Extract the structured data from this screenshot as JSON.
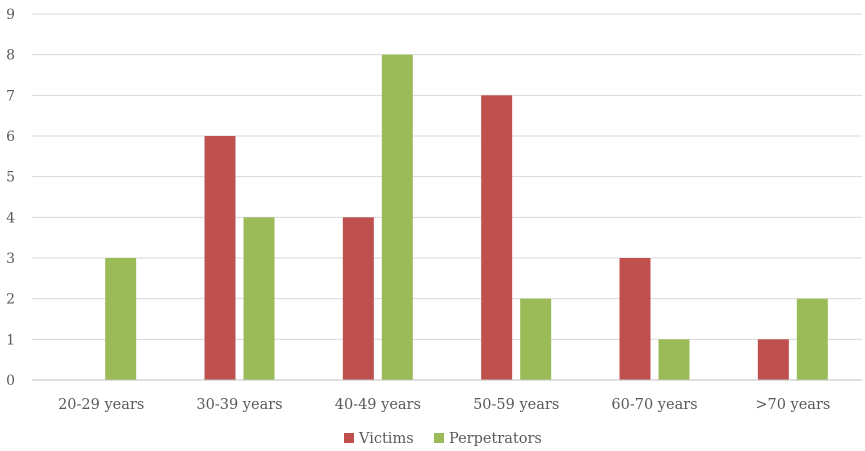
{
  "chart_data": {
    "type": "bar",
    "title": "",
    "xlabel": "",
    "ylabel": "",
    "categories": [
      "20-29 years",
      "30-39 years",
      "40-49 years",
      "50-59 years",
      "60-70 years",
      ">70 years"
    ],
    "series": [
      {
        "name": "Victims",
        "color": "#c0504d",
        "values": [
          0,
          6,
          4,
          7,
          3,
          1
        ]
      },
      {
        "name": "Perpetrators",
        "color": "#9bbb59",
        "values": [
          3,
          4,
          8,
          2,
          1,
          2
        ]
      }
    ],
    "ylim": [
      0,
      9
    ],
    "yticks": [
      0,
      1,
      2,
      3,
      4,
      5,
      6,
      7,
      8,
      9
    ],
    "grid": true,
    "legend_position": "bottom"
  }
}
